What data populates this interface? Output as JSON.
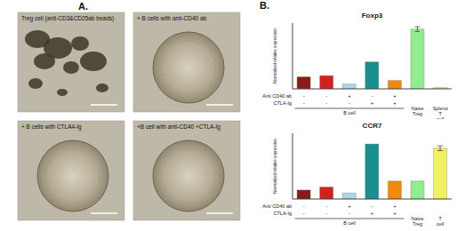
{
  "panel_a": {
    "label": "A.",
    "images": [
      {
        "caption": "Treg cell (anti-CD3&CD25ab beads)"
      },
      {
        "caption": "+ B cells with anti-CD40 ab"
      },
      {
        "caption": "+ B cells with CTLA4-Ig"
      },
      {
        "caption": "+B cell with anti-CD40 +CTLA-Ig"
      }
    ]
  },
  "panel_b": {
    "label": "B."
  },
  "chart_data": [
    {
      "type": "bar",
      "title": "Foxp3",
      "y_label": "Normalized relative expression",
      "categories": [
        null,
        null,
        null,
        null,
        null,
        "Naive Treg",
        "Spleno T cell"
      ],
      "values": [
        0.2,
        0.22,
        0.08,
        0.45,
        0.14,
        1.0,
        0.02
      ],
      "errors": [
        null,
        null,
        null,
        null,
        null,
        0.04,
        null
      ],
      "colors": [
        "#8b1a1a",
        "#d42020",
        "#a8d8ea",
        "#1a8f8f",
        "#f08a0b",
        "#90ee90",
        "#e8e86a"
      ],
      "ylim": [
        0,
        1.1
      ],
      "tick_labels": false,
      "conditions": [
        {
          "label": "Anti CD40 ab",
          "marks": [
            "-",
            "-",
            "+",
            "-",
            "+",
            null,
            null
          ]
        },
        {
          "label": "CTLA-Ig",
          "marks": [
            "-",
            "-",
            "-",
            "+",
            "+",
            null,
            null
          ]
        }
      ],
      "group": {
        "label": "B cell",
        "from": 0,
        "to": 4
      }
    },
    {
      "type": "bar",
      "title": "CCR7",
      "y_label": "Normalized relative expression",
      "categories": [
        null,
        null,
        null,
        null,
        null,
        "Naive Treg",
        "T cell"
      ],
      "values": [
        0.15,
        0.2,
        0.1,
        0.92,
        0.3,
        0.3,
        0.85
      ],
      "errors": [
        null,
        null,
        null,
        null,
        null,
        null,
        0.04
      ],
      "colors": [
        "#8b1a1a",
        "#d42020",
        "#a8d8ea",
        "#1a8f8f",
        "#f08a0b",
        "#90ee90",
        "#f0f060"
      ],
      "ylim": [
        0,
        1.1
      ],
      "tick_labels": false,
      "conditions": [
        {
          "label": "Anti CD40 ab",
          "marks": [
            "-",
            "-",
            "+",
            "-",
            "+",
            null,
            null
          ]
        },
        {
          "label": "CTLA-Ig",
          "marks": [
            "-",
            "-",
            "-",
            "+",
            "+",
            null,
            null
          ]
        }
      ],
      "group": {
        "label": "B cell",
        "from": 0,
        "to": 4
      }
    }
  ]
}
